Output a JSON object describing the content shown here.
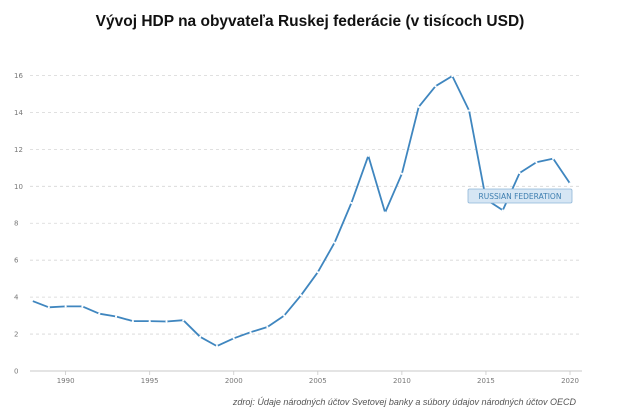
{
  "chart_data": {
    "type": "line",
    "title": "Vývoj HDP na obyvateľa Ruskej federácie (v tisícoch USD)",
    "xlabel": "",
    "ylabel": "",
    "xlim": [
      1988,
      2021
    ],
    "ylim": [
      0,
      17
    ],
    "x_ticks": [
      1990,
      1995,
      2000,
      2005,
      2010,
      2015,
      2020
    ],
    "y_ticks": [
      0,
      2,
      4,
      6,
      8,
      10,
      12,
      14,
      16
    ],
    "grid": "horizontal-dashed",
    "series": [
      {
        "name": "RUSSIAN FEDERATION",
        "color": "#3f86bf",
        "x": [
          1988,
          1989,
          1990,
          1991,
          1992,
          1993,
          1994,
          1995,
          1996,
          1997,
          1998,
          1999,
          2000,
          2001,
          2002,
          2003,
          2004,
          2005,
          2006,
          2007,
          2008,
          2009,
          2010,
          2011,
          2012,
          2013,
          2014,
          2015,
          2016,
          2017,
          2018,
          2019,
          2020
        ],
        "values": [
          3.8,
          3.45,
          3.5,
          3.5,
          3.1,
          2.95,
          2.7,
          2.7,
          2.68,
          2.75,
          1.85,
          1.35,
          1.77,
          2.1,
          2.38,
          3.0,
          4.1,
          5.35,
          6.95,
          9.1,
          11.65,
          8.58,
          10.68,
          14.3,
          15.42,
          15.97,
          14.1,
          9.3,
          8.7,
          10.72,
          11.3,
          11.5,
          10.15
        ],
        "label_box": "RUSSIAN FEDERATION"
      }
    ],
    "source": "zdroj: Údaje národných účtov Svetovej banky a súbory údajov národných účtov OECD"
  }
}
